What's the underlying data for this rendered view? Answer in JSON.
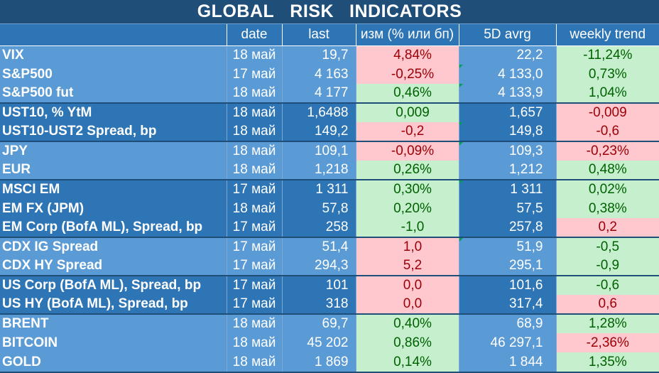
{
  "title_words": [
    "GLOBAL",
    "RISK",
    "INDICATORS"
  ],
  "headers": {
    "name": "",
    "date": "date",
    "last": "last",
    "change": "изм (% или бп)",
    "avg5d": "5D avrg",
    "trend": "weekly trend"
  },
  "colors": {
    "dark_blue": "#1f4e79",
    "mid_blue": "#2e75b6",
    "light_blue": "#5b9bd5",
    "positive_fill": "#c6efce",
    "positive_text": "#006100",
    "negative_fill": "#ffc7ce",
    "negative_text": "#9c0006"
  },
  "rows": [
    {
      "name": "VIX",
      "date": "18 май",
      "last": "19,7",
      "change": "4,84%",
      "change_state": "neg",
      "avg5d": "22,2",
      "trend": "-11,24%",
      "trend_state": "pos"
    },
    {
      "name": "S&P500",
      "date": "17 май",
      "last": "4 163",
      "change": "-0,25%",
      "change_state": "neg",
      "avg5d": "4 133,0",
      "trend": "0,73%",
      "trend_state": "pos"
    },
    {
      "name": "S&P500 fut",
      "date": "18 май",
      "last": "4 177",
      "change": "0,46%",
      "change_state": "pos",
      "avg5d": "4 133,9",
      "trend": "1,04%",
      "trend_state": "pos"
    },
    {
      "name": "UST10, % YtM",
      "date": "18 май",
      "last": "1,6488",
      "change": "0,009",
      "change_state": "pos",
      "avg5d": "1,657",
      "trend": "-0,009",
      "trend_state": "neg"
    },
    {
      "name": "UST10-UST2 Spread, bp",
      "date": "18 май",
      "last": "149,2",
      "change": "-0,2",
      "change_state": "neg",
      "avg5d": "149,8",
      "trend": "-0,6",
      "trend_state": "neg"
    },
    {
      "name": "JPY",
      "date": "18 май",
      "last": "109,1",
      "change": "-0,09%",
      "change_state": "neg",
      "avg5d": "109,3",
      "trend": "-0,23%",
      "trend_state": "neg"
    },
    {
      "name": "EUR",
      "date": "18 май",
      "last": "1,218",
      "change": "0,26%",
      "change_state": "pos",
      "avg5d": "1,212",
      "trend": "0,48%",
      "trend_state": "pos"
    },
    {
      "name": "MSCI EM",
      "date": "17 май",
      "last": "1 311",
      "change": "0,30%",
      "change_state": "pos",
      "avg5d": "1 311",
      "trend": "0,02%",
      "trend_state": "pos"
    },
    {
      "name": "EM FX (JPM)",
      "date": "18 май",
      "last": "57,8",
      "change": "0,20%",
      "change_state": "pos",
      "avg5d": "57,5",
      "trend": "0,38%",
      "trend_state": "pos"
    },
    {
      "name": "EM Corp (BofA ML), Spread, bp",
      "date": "17 май",
      "last": "258",
      "change": "-1,0",
      "change_state": "pos",
      "avg5d": "257,8",
      "trend": "0,2",
      "trend_state": "neg"
    },
    {
      "name": "CDX IG Spread",
      "date": "17 май",
      "last": "51,4",
      "change": "1,0",
      "change_state": "neg",
      "avg5d": "51,9",
      "trend": "-0,5",
      "trend_state": "pos"
    },
    {
      "name": "CDX HY Spread",
      "date": "17 май",
      "last": "294,3",
      "change": "5,2",
      "change_state": "neg",
      "avg5d": "295,1",
      "trend": "-0,9",
      "trend_state": "pos"
    },
    {
      "name": "US Corp (BofA ML), Spread, bp",
      "date": "17 май",
      "last": "101",
      "change": "0,0",
      "change_state": "neg",
      "avg5d": "101,6",
      "trend": "-0,6",
      "trend_state": "pos"
    },
    {
      "name": "US HY (BofA ML), Spread, bp",
      "date": "17 май",
      "last": "318",
      "change": "0,0",
      "change_state": "neg",
      "avg5d": "317,4",
      "trend": "0,6",
      "trend_state": "neg"
    },
    {
      "name": "BRENT",
      "date": "18 май",
      "last": "69,7",
      "change": "0,40%",
      "change_state": "pos",
      "avg5d": "68,9",
      "trend": "1,28%",
      "trend_state": "pos"
    },
    {
      "name": "BITCOIN",
      "date": "18 май",
      "last": "45 202",
      "change": "0,86%",
      "change_state": "pos",
      "avg5d": "46 297,1",
      "trend": "-2,36%",
      "trend_state": "neg"
    },
    {
      "name": "GOLD",
      "date": "18 май",
      "last": "1 869",
      "change": "0,14%",
      "change_state": "pos",
      "avg5d": "1 844",
      "trend": "1,35%",
      "trend_state": "pos"
    }
  ]
}
